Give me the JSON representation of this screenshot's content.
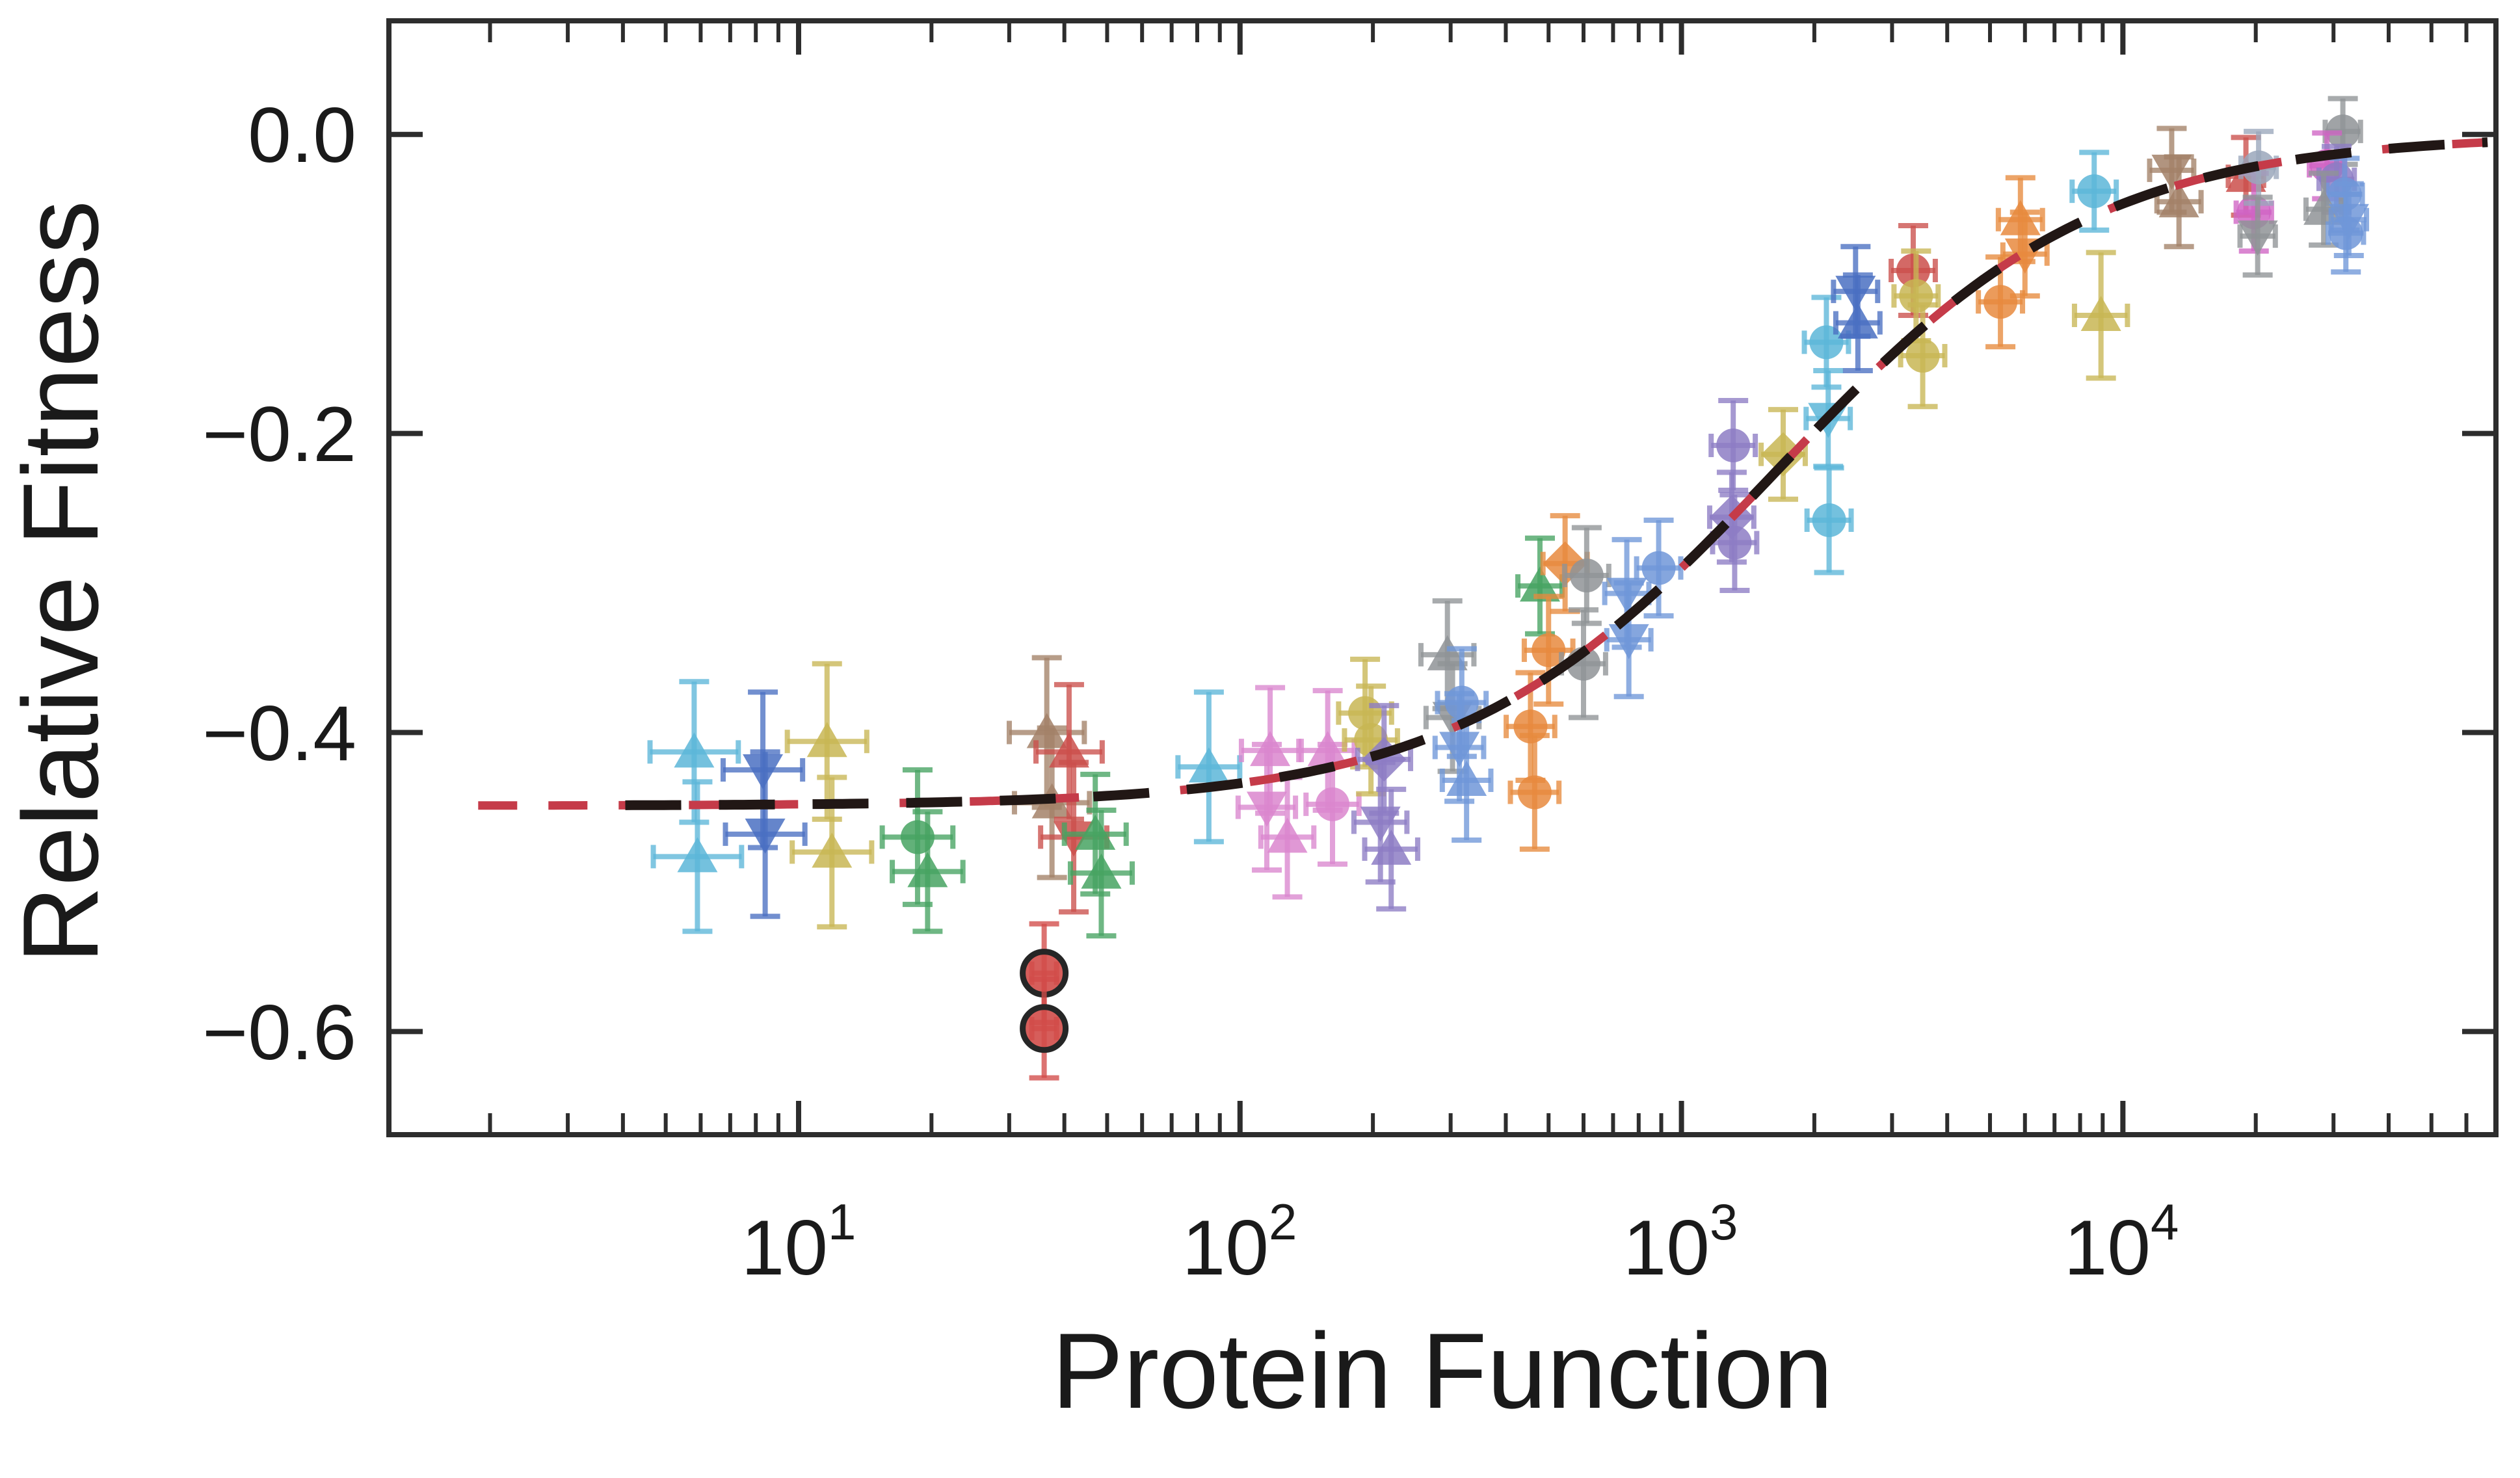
{
  "figure": {
    "background": "#ffffff",
    "axis_color": "#2d2d2d",
    "text_color": "#1a1a1a"
  },
  "chart_data": {
    "type": "scatter",
    "title": "",
    "xlabel": "Protein Function",
    "ylabel": "Relative Fitness",
    "x_scale": "log",
    "y_scale": "linear",
    "xlim": [
      1.18,
      70000
    ],
    "ylim": [
      -0.669,
      0.076
    ],
    "grid": false,
    "legend": "none",
    "x_major_ticks": [
      10,
      100,
      1000,
      10000
    ],
    "x_tick_labels": [
      {
        "base": "10",
        "exp": "1"
      },
      {
        "base": "10",
        "exp": "2"
      },
      {
        "base": "10",
        "exp": "3"
      },
      {
        "base": "10",
        "exp": "4"
      }
    ],
    "y_major_ticks": [
      0,
      -0.2,
      -0.4,
      -0.6
    ],
    "y_tick_labels": [
      "0.0",
      "−0.2",
      "−0.4",
      "−0.6"
    ],
    "fit_curve": {
      "model": "hill",
      "formula": "v(f) = v_plateau * r/(1+r),  r = (K/f)^n",
      "v_plateau": -0.449,
      "K": 1650,
      "n": 1.2,
      "styles": [
        {
          "name": "red-dashed-fit",
          "color": "#c53b49",
          "width": 13,
          "dash": [
            60,
            48
          ],
          "f_start": 1.88,
          "f_end": 67000
        },
        {
          "name": "black-dashed-fit",
          "color": "#211715",
          "width": 15,
          "dash": [
            86,
            58
          ],
          "f_start": 4.05,
          "f_end": 67000
        }
      ]
    },
    "palette": {
      "cyan": "#5cb6d8",
      "blue": "#4a70c2",
      "khaki": "#c8b654",
      "green": "#47a361",
      "brown": "#a38168",
      "red": "#cb4f4b",
      "redOutlined": "#d24c49",
      "orchid": "#da86ce",
      "magenta": "#d064c4",
      "purple": "#8d7cc4",
      "gray": "#8f9396",
      "cornflower": "#7097d8",
      "orange": "#e78a3e",
      "slate": "#9aa7bb"
    },
    "outline_color": "#262626",
    "points": [
      {
        "f": 5.8,
        "v": -0.413,
        "color": "cyan",
        "marker": "triangle-up",
        "ex_dex": 0.1,
        "ey": 0.047
      },
      {
        "f": 5.9,
        "v": -0.483,
        "color": "cyan",
        "marker": "triangle-up",
        "ex_dex": 0.1,
        "ey": 0.05
      },
      {
        "f": 8.3,
        "v": -0.425,
        "color": "blue",
        "marker": "triangle-down",
        "ex_dex": 0.09,
        "ey": 0.052
      },
      {
        "f": 8.4,
        "v": -0.468,
        "color": "blue",
        "marker": "triangle-down",
        "ex_dex": 0.09,
        "ey": 0.055
      },
      {
        "f": 11.6,
        "v": -0.406,
        "color": "khaki",
        "marker": "triangle-up",
        "ex_dex": 0.09,
        "ey": 0.052
      },
      {
        "f": 11.9,
        "v": -0.48,
        "color": "khaki",
        "marker": "triangle-up",
        "ex_dex": 0.09,
        "ey": 0.05
      },
      {
        "f": 18.6,
        "v": -0.47,
        "color": "green",
        "marker": "circle",
        "ex_dex": 0.08,
        "ey": 0.045
      },
      {
        "f": 19.6,
        "v": -0.493,
        "color": "green",
        "marker": "triangle-up",
        "ex_dex": 0.08,
        "ey": 0.04
      },
      {
        "f": 36.5,
        "v": -0.4,
        "color": "brown",
        "marker": "triangle-up",
        "ex_dex": 0.085,
        "ey": 0.05
      },
      {
        "f": 37.5,
        "v": -0.447,
        "color": "brown",
        "marker": "triangle-up",
        "ex_dex": 0.085,
        "ey": 0.05
      },
      {
        "f": 41,
        "v": -0.413,
        "color": "red",
        "marker": "triangle-up",
        "ex_dex": 0.075,
        "ey": 0.045
      },
      {
        "f": 42,
        "v": -0.47,
        "color": "red",
        "marker": "triangle-down",
        "ex_dex": 0.075,
        "ey": 0.05
      },
      {
        "f": 47,
        "v": -0.468,
        "color": "green",
        "marker": "triangle-up",
        "ex_dex": 0.07,
        "ey": 0.04
      },
      {
        "f": 48.5,
        "v": -0.494,
        "color": "green",
        "marker": "triangle-up",
        "ex_dex": 0.07,
        "ey": 0.042
      },
      {
        "f": 36,
        "v": -0.561,
        "color": "redOutlined",
        "marker": "circle-outlined",
        "ex_dex": 0.028,
        "ey": 0.033
      },
      {
        "f": 36,
        "v": -0.598,
        "color": "redOutlined",
        "marker": "circle-outlined",
        "ex_dex": 0.028,
        "ey": 0.033
      },
      {
        "f": 85,
        "v": -0.423,
        "color": "cyan",
        "marker": "triangle-up",
        "ex_dex": 0.07,
        "ey": 0.05
      },
      {
        "f": 117,
        "v": -0.412,
        "color": "orchid",
        "marker": "triangle-up",
        "ex_dex": 0.065,
        "ey": 0.042
      },
      {
        "f": 115,
        "v": -0.45,
        "color": "orchid",
        "marker": "triangle-down",
        "ex_dex": 0.065,
        "ey": 0.042
      },
      {
        "f": 128,
        "v": -0.47,
        "color": "orchid",
        "marker": "triangle-up",
        "ex_dex": 0.06,
        "ey": 0.04
      },
      {
        "f": 158,
        "v": -0.412,
        "color": "orchid",
        "marker": "triangle-up",
        "ex_dex": 0.06,
        "ey": 0.04
      },
      {
        "f": 162,
        "v": -0.448,
        "color": "orchid",
        "marker": "circle",
        "ex_dex": 0.06,
        "ey": 0.04
      },
      {
        "f": 192,
        "v": -0.387,
        "color": "khaki",
        "marker": "circle",
        "ex_dex": 0.06,
        "ey": 0.036
      },
      {
        "f": 198,
        "v": -0.405,
        "color": "khaki",
        "marker": "circle",
        "ex_dex": 0.06,
        "ey": 0.036
      },
      {
        "f": 212,
        "v": -0.418,
        "color": "purple",
        "marker": "diamond",
        "ex_dex": 0.06,
        "ey": 0.036
      },
      {
        "f": 208,
        "v": -0.46,
        "color": "purple",
        "marker": "triangle-down",
        "ex_dex": 0.06,
        "ey": 0.04
      },
      {
        "f": 220,
        "v": -0.478,
        "color": "purple",
        "marker": "triangle-up",
        "ex_dex": 0.06,
        "ey": 0.04
      },
      {
        "f": 295,
        "v": -0.348,
        "color": "gray",
        "marker": "triangle-up",
        "ex_dex": 0.06,
        "ey": 0.036
      },
      {
        "f": 303,
        "v": -0.39,
        "color": "gray",
        "marker": "triangle-down",
        "ex_dex": 0.06,
        "ey": 0.036
      },
      {
        "f": 318,
        "v": -0.38,
        "color": "cornflower",
        "marker": "circle",
        "ex_dex": 0.055,
        "ey": 0.036
      },
      {
        "f": 314,
        "v": -0.41,
        "color": "cornflower",
        "marker": "triangle-down",
        "ex_dex": 0.055,
        "ey": 0.036
      },
      {
        "f": 326,
        "v": -0.432,
        "color": "cornflower",
        "marker": "triangle-up",
        "ex_dex": 0.055,
        "ey": 0.04
      },
      {
        "f": 478,
        "v": -0.302,
        "color": "green",
        "marker": "triangle-up",
        "ex_dex": 0.05,
        "ey": 0.032
      },
      {
        "f": 500,
        "v": -0.345,
        "color": "orange",
        "marker": "circle",
        "ex_dex": 0.055,
        "ey": 0.036
      },
      {
        "f": 455,
        "v": -0.396,
        "color": "orange",
        "marker": "circle",
        "ex_dex": 0.055,
        "ey": 0.036
      },
      {
        "f": 465,
        "v": -0.44,
        "color": "orange",
        "marker": "circle",
        "ex_dex": 0.055,
        "ey": 0.038
      },
      {
        "f": 545,
        "v": -0.287,
        "color": "orange",
        "marker": "diamond",
        "ex_dex": 0.05,
        "ey": 0.032
      },
      {
        "f": 610,
        "v": -0.295,
        "color": "gray",
        "marker": "circle",
        "ex_dex": 0.05,
        "ey": 0.032
      },
      {
        "f": 600,
        "v": -0.354,
        "color": "gray",
        "marker": "circle",
        "ex_dex": 0.05,
        "ey": 0.036
      },
      {
        "f": 752,
        "v": -0.307,
        "color": "cornflower",
        "marker": "triangle-down",
        "ex_dex": 0.05,
        "ey": 0.036
      },
      {
        "f": 760,
        "v": -0.338,
        "color": "cornflower",
        "marker": "triangle-down",
        "ex_dex": 0.05,
        "ey": 0.038
      },
      {
        "f": 888,
        "v": -0.29,
        "color": "cornflower",
        "marker": "circle",
        "ex_dex": 0.05,
        "ey": 0.032
      },
      {
        "f": 1310,
        "v": -0.208,
        "color": "purple",
        "marker": "circle",
        "ex_dex": 0.05,
        "ey": 0.03
      },
      {
        "f": 1300,
        "v": -0.256,
        "color": "purple",
        "marker": "diamond",
        "ex_dex": 0.05,
        "ey": 0.03
      },
      {
        "f": 1320,
        "v": -0.273,
        "color": "purple",
        "marker": "circle",
        "ex_dex": 0.05,
        "ey": 0.032
      },
      {
        "f": 1700,
        "v": -0.214,
        "color": "khaki",
        "marker": "diamond",
        "ex_dex": 0.05,
        "ey": 0.03
      },
      {
        "f": 2130,
        "v": -0.139,
        "color": "cyan",
        "marker": "circle",
        "ex_dex": 0.05,
        "ey": 0.03
      },
      {
        "f": 2150,
        "v": -0.19,
        "color": "cyan",
        "marker": "triangle-down",
        "ex_dex": 0.05,
        "ey": 0.032
      },
      {
        "f": 2160,
        "v": -0.258,
        "color": "cyan",
        "marker": "circle",
        "ex_dex": 0.05,
        "ey": 0.035
      },
      {
        "f": 2480,
        "v": -0.105,
        "color": "blue",
        "marker": "triangle-down",
        "ex_dex": 0.05,
        "ey": 0.03
      },
      {
        "f": 2510,
        "v": -0.126,
        "color": "blue",
        "marker": "triangle-up",
        "ex_dex": 0.05,
        "ey": 0.032
      },
      {
        "f": 3350,
        "v": -0.091,
        "color": "red",
        "marker": "circle",
        "ex_dex": 0.05,
        "ey": 0.03
      },
      {
        "f": 3400,
        "v": -0.108,
        "color": "khaki",
        "marker": "circle",
        "ex_dex": 0.05,
        "ey": 0.03
      },
      {
        "f": 3520,
        "v": -0.148,
        "color": "khaki",
        "marker": "circle",
        "ex_dex": 0.05,
        "ey": 0.034
      },
      {
        "f": 5280,
        "v": -0.112,
        "color": "orange",
        "marker": "circle",
        "ex_dex": 0.05,
        "ey": 0.03
      },
      {
        "f": 5860,
        "v": -0.057,
        "color": "orange",
        "marker": "triangle-up",
        "ex_dex": 0.05,
        "ey": 0.028
      },
      {
        "f": 6000,
        "v": -0.08,
        "color": "orange",
        "marker": "triangle-down",
        "ex_dex": 0.05,
        "ey": 0.028
      },
      {
        "f": 8920,
        "v": -0.121,
        "color": "khaki",
        "marker": "triangle-up",
        "ex_dex": 0.06,
        "ey": 0.042
      },
      {
        "f": 8610,
        "v": -0.038,
        "color": "cyan",
        "marker": "circle",
        "ex_dex": 0.05,
        "ey": 0.026
      },
      {
        "f": 12900,
        "v": -0.024,
        "color": "brown",
        "marker": "triangle-down",
        "ex_dex": 0.05,
        "ey": 0.028
      },
      {
        "f": 13400,
        "v": -0.045,
        "color": "brown",
        "marker": "triangle-up",
        "ex_dex": 0.05,
        "ey": 0.03
      },
      {
        "f": 19000,
        "v": -0.028,
        "color": "red",
        "marker": "triangle-up",
        "ex_dex": 0.04,
        "ey": 0.026
      },
      {
        "f": 19800,
        "v": -0.052,
        "color": "magenta",
        "marker": "circle",
        "ex_dex": 0.04,
        "ey": 0.026
      },
      {
        "f": 20300,
        "v": -0.022,
        "color": "slate",
        "marker": "circle",
        "ex_dex": 0.04,
        "ey": 0.024
      },
      {
        "f": 20200,
        "v": -0.068,
        "color": "gray",
        "marker": "triangle-down",
        "ex_dex": 0.04,
        "ey": 0.026
      },
      {
        "f": 31500,
        "v": 0.002,
        "color": "gray",
        "marker": "circle",
        "ex_dex": 0.04,
        "ey": 0.022
      },
      {
        "f": 29000,
        "v": -0.021,
        "color": "magenta",
        "marker": "circle",
        "ex_dex": 0.04,
        "ey": 0.022
      },
      {
        "f": 30500,
        "v": -0.03,
        "color": "purple",
        "marker": "circle",
        "ex_dex": 0.04,
        "ey": 0.022
      },
      {
        "f": 31800,
        "v": -0.04,
        "color": "cornflower",
        "marker": "circle",
        "ex_dex": 0.04,
        "ey": 0.024
      },
      {
        "f": 28500,
        "v": -0.05,
        "color": "gray",
        "marker": "triangle-up",
        "ex_dex": 0.04,
        "ey": 0.024
      },
      {
        "f": 32500,
        "v": -0.057,
        "color": "cornflower",
        "marker": "triangle-down",
        "ex_dex": 0.04,
        "ey": 0.024
      },
      {
        "f": 32000,
        "v": -0.066,
        "color": "cornflower",
        "marker": "circle",
        "ex_dex": 0.04,
        "ey": 0.026
      }
    ]
  }
}
